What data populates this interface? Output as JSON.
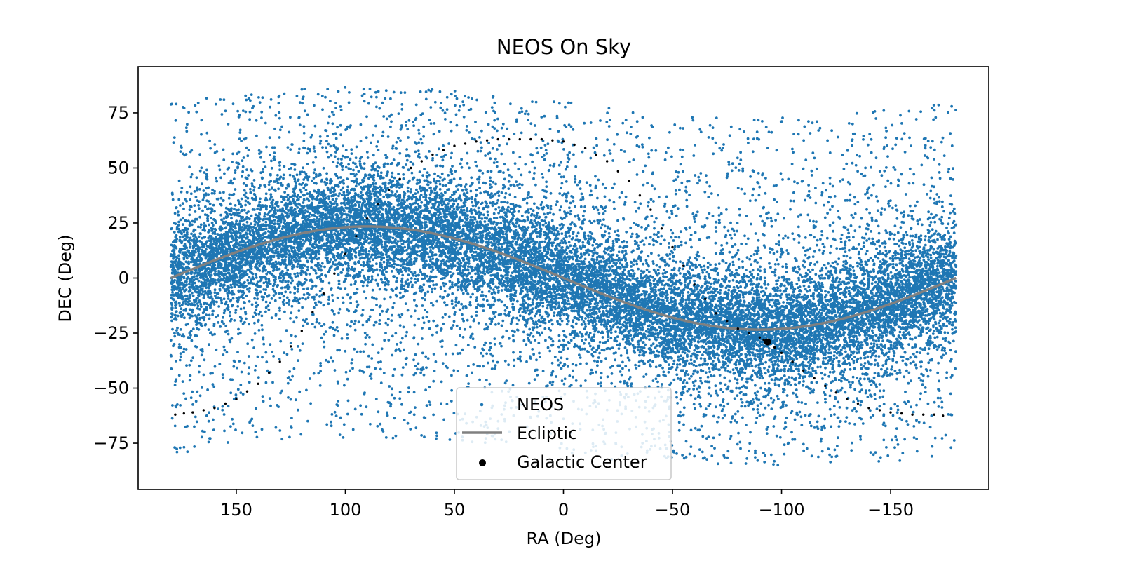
{
  "chart_data": {
    "type": "scatter",
    "title": "NEOS On Sky",
    "xlabel": "RA (Deg)",
    "ylabel": "DEC (Deg)",
    "xlim": [
      195,
      -195
    ],
    "ylim": [
      -96,
      96
    ],
    "x_ticks": [
      150,
      100,
      50,
      0,
      -50,
      -100,
      -150
    ],
    "x_tick_labels": [
      "150",
      "100",
      "50",
      "0",
      "−50",
      "−100",
      "−150"
    ],
    "y_ticks": [
      75,
      50,
      25,
      0,
      -25,
      -50,
      -75
    ],
    "y_tick_labels": [
      "75",
      "50",
      "25",
      "0",
      "−25",
      "−50",
      "−75"
    ],
    "grid": false,
    "legend_position": "lower center",
    "series": [
      {
        "name": "NEOS",
        "kind": "scatter",
        "color": "#1f77b4",
        "point_count": 20000,
        "distribution": "dense band along the ecliptic with scattered points filling RA -180 to 180, DEC -85 to 87"
      },
      {
        "name": "Ecliptic",
        "kind": "line",
        "color": "#808080",
        "formula": "DEC = 23.44 * sin(RA)",
        "x_range": [
          180,
          -180
        ]
      },
      {
        "name": "Galactic Center",
        "kind": "marker",
        "color": "#000000",
        "x": [
          -93.6
        ],
        "y": [
          -29.0
        ]
      },
      {
        "name": "",
        "kind": "dotted-path",
        "color": "#000000",
        "description": "galactic plane",
        "x": [
          178,
          170,
          160,
          150,
          140,
          130,
          120,
          110,
          100,
          90,
          80,
          70,
          60,
          50,
          40,
          30,
          20,
          10,
          0,
          -10,
          -20,
          -30,
          -40,
          -50,
          -60,
          -70,
          -80,
          -90,
          -93.6,
          -100,
          -110,
          -120,
          -130,
          -140,
          -150,
          -160,
          -170,
          -178
        ],
        "y": [
          -62,
          -61,
          -59,
          -55,
          -48,
          -38,
          -24,
          -7,
          11,
          27,
          40,
          50,
          56,
          60,
          62,
          63,
          63,
          63,
          62,
          59,
          53,
          44,
          31,
          14,
          -3,
          -16,
          -23,
          -27,
          -29,
          -34,
          -42,
          -49,
          -55,
          -59,
          -61,
          -62,
          -62,
          -63
        ]
      }
    ]
  }
}
